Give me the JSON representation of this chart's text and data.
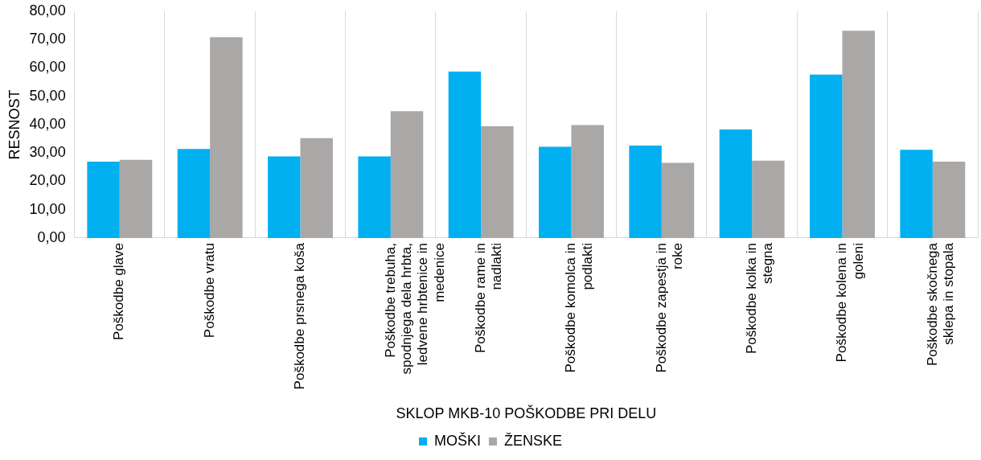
{
  "chart_data": {
    "type": "bar",
    "xlabel": "SKLOP MKB-10 POŠKODBE PRI DELU",
    "ylabel": "RESNOST",
    "categories": [
      "Poškodbe glave",
      "Poškodbe vratu",
      "Poškodbe prsnega koša",
      "Poškodbe trebuha, spodnjega dela hrbta, ledvene hrbtenice in medenice",
      "Poškodbe rame in nadlakti",
      "Poškodbe komolca in podlakti",
      "Poškodbe zapestja in roke",
      "Poškodbe kolka in stegna",
      "Poškodbe kolena in goleni",
      "Poškodbe skočnega sklepa in stopala"
    ],
    "series": [
      {
        "name": "MOŠKI",
        "color": "#00b0f0",
        "values": [
          26.9,
          31.4,
          28.8,
          28.8,
          58.7,
          32.2,
          32.6,
          38.3,
          57.6,
          31.1
        ]
      },
      {
        "name": "ŽENSKE",
        "color": "#aaa7a7",
        "values": [
          27.6,
          70.8,
          35.2,
          44.7,
          39.4,
          39.8,
          26.5,
          27.3,
          73.1,
          26.9
        ]
      }
    ],
    "ylim": [
      0,
      80
    ],
    "yticks": [
      {
        "value": 0,
        "label": "0,00"
      },
      {
        "value": 10,
        "label": "10,00"
      },
      {
        "value": 20,
        "label": "20,00"
      },
      {
        "value": 30,
        "label": "30,00"
      },
      {
        "value": 40,
        "label": "40,00"
      },
      {
        "value": 50,
        "label": "50,00"
      },
      {
        "value": 60,
        "label": "60,00"
      },
      {
        "value": 70,
        "label": "70,00"
      },
      {
        "value": 80,
        "label": "80,00"
      }
    ],
    "grid": "x",
    "legend": "bottom"
  }
}
